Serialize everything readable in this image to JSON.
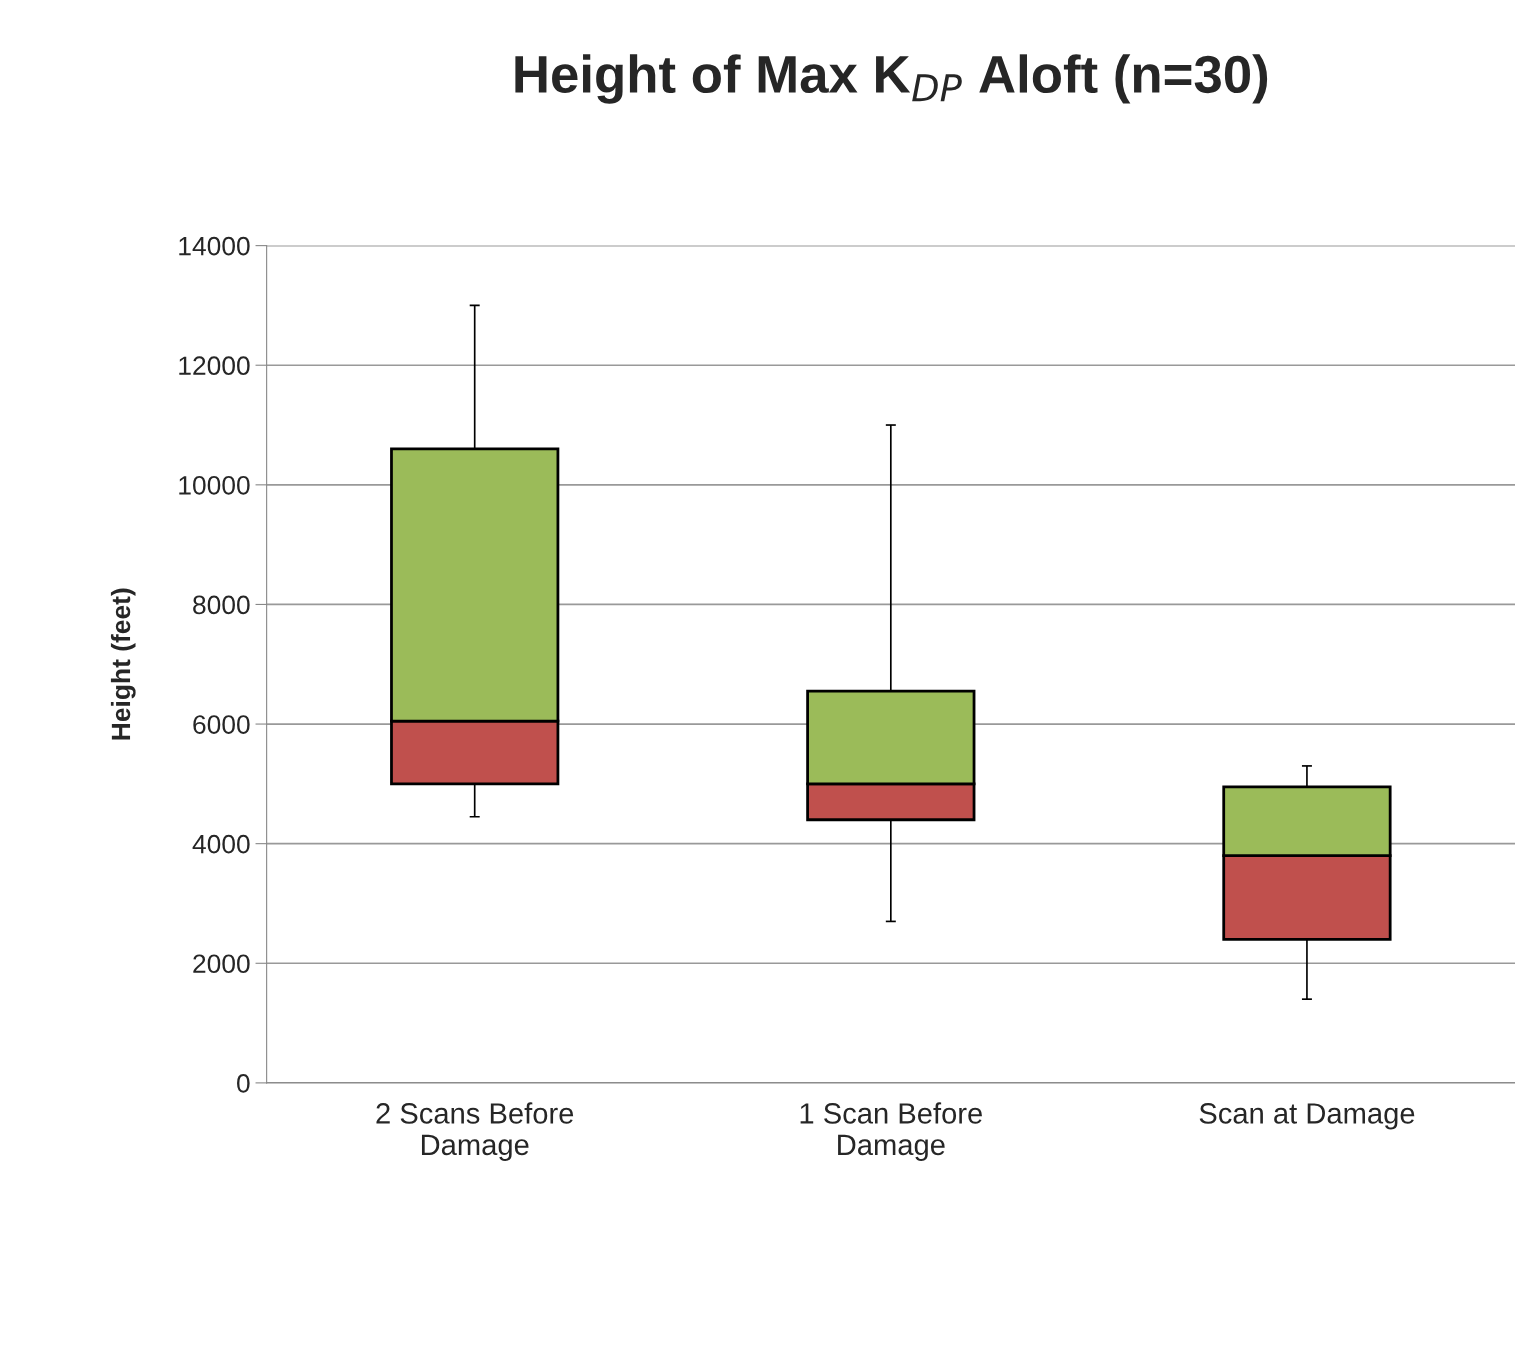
{
  "chart_data": {
    "type": "box",
    "title": "Height of Max K$_{DP}$ Aloft (n=30)",
    "ylabel": "Height (feet)",
    "categories": [
      "2 Scans Before Damage",
      "1 Scan Before Damage",
      "Scan at Damage"
    ],
    "boxes": [
      {
        "low": 4450,
        "q1": 5000,
        "median": 6050,
        "q3": 10600,
        "high": 13000
      },
      {
        "low": 2700,
        "q1": 4400,
        "median": 5000,
        "q3": 6550,
        "high": 11000
      },
      {
        "low": 1400,
        "q1": 2400,
        "median": 3800,
        "q3": 4950,
        "high": 5300
      }
    ],
    "colors": [
      "#c0504d",
      "#c0504d",
      "#c0504d"
    ],
    "color": "#9bbb59",
    "ylim": [
      0,
      14000
    ],
    "yticks": [
      0,
      2000,
      4000,
      6000,
      8000,
      10000,
      12000,
      14000
    ],
    "grid": "y",
    "legend": false
  }
}
